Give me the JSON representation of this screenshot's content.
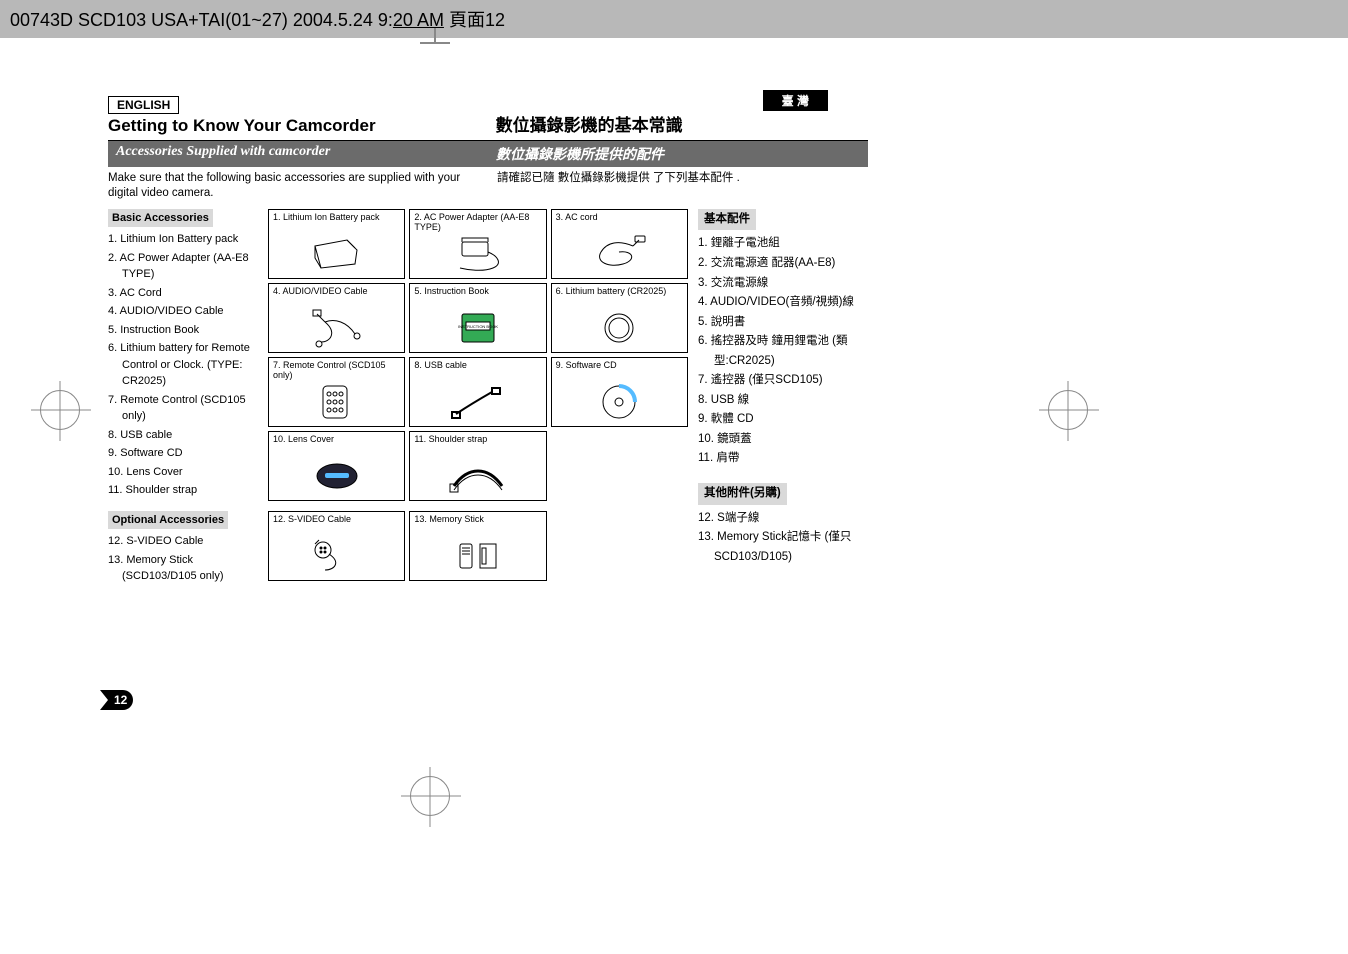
{
  "header": {
    "text_prefix": "00743D SCD103 USA+TAI(01~27)  2004.5.24  9:",
    "text_underline": "20 AM",
    "text_suffix": "  頁面12"
  },
  "lang": {
    "en": "ENGLISH",
    "cn": "臺  灣"
  },
  "title": {
    "en": "Getting to Know Your Camcorder",
    "cn": "數位攝錄影機的基本常識"
  },
  "subtitle": {
    "en": "Accessories Supplied with camcorder",
    "cn": "數位攝錄影機所提供的配件"
  },
  "intro": {
    "en": "Make sure that the following basic accessories are supplied with your digital video camera.",
    "cn": "請確認已隨 數位攝錄影機提供 了下列基本配件 ."
  },
  "basic_hd": {
    "en": "Basic Accessories",
    "cn": "基本配件"
  },
  "optional_hd": {
    "en": "Optional Accessories",
    "cn": "其他附件(另購)"
  },
  "list_en": [
    "1.  Lithium Ion Battery pack",
    "2.  AC Power Adapter (AA-E8 TYPE)",
    "3.  AC Cord",
    "4.  AUDIO/VIDEO Cable",
    "5.  Instruction Book",
    "6.  Lithium battery for Remote Control or Clock. (TYPE: CR2025)",
    "7.  Remote Control (SCD105 only)",
    "8.  USB cable",
    "9.  Software CD",
    "10. Lens Cover",
    "11. Shoulder strap"
  ],
  "opt_list_en": [
    "12. S-VIDEO Cable",
    "13. Memory Stick (SCD103/D105 only)"
  ],
  "list_cn": [
    "1.  鋰離子電池組",
    "2.  交流電源適 配器(AA-E8)",
    "3.  交流電源線",
    "4.  AUDIO/VIDEO(音頻/視頻)線",
    "5.  說明書",
    "6.  搖控器及時 鐘用鋰電池 (類型:CR2025)",
    "7.  遙控器 (僅只SCD105)",
    "8.  USB 線",
    "9.  軟體 CD",
    "10. 鏡頭蓋",
    "11. 肩帶"
  ],
  "opt_list_cn": [
    "12. S端子線",
    "13. Memory Stick記憶卡 (僅只SCD103/D105)"
  ],
  "cells": [
    {
      "label": "1. Lithium Ion Battery pack",
      "icon": "battery"
    },
    {
      "label": "2. AC Power Adapter (AA-E8 TYPE)",
      "icon": "adapter"
    },
    {
      "label": "3. AC cord",
      "icon": "cord"
    },
    {
      "label": "4. AUDIO/VIDEO Cable",
      "icon": "avcable"
    },
    {
      "label": "5. Instruction Book",
      "icon": "book"
    },
    {
      "label": "6. Lithium battery (CR2025)",
      "icon": "coin"
    },
    {
      "label": "7. Remote Control (SCD105 only)",
      "icon": "remote"
    },
    {
      "label": "8. USB cable",
      "icon": "usb"
    },
    {
      "label": "9. Software CD",
      "icon": "cd"
    },
    {
      "label": "10. Lens Cover",
      "icon": "lenscover"
    },
    {
      "label": "11. Shoulder strap",
      "icon": "strap"
    }
  ],
  "opt_cells": [
    {
      "label": "12. S-VIDEO Cable",
      "icon": "svideo"
    },
    {
      "label": "13. Memory Stick",
      "icon": "mstick"
    }
  ],
  "pagenum": "12",
  "colors": {
    "header_bg": "#b8b8b8",
    "bar_bg": "#6b6b6b",
    "shade_bg": "#d9d9d9"
  }
}
